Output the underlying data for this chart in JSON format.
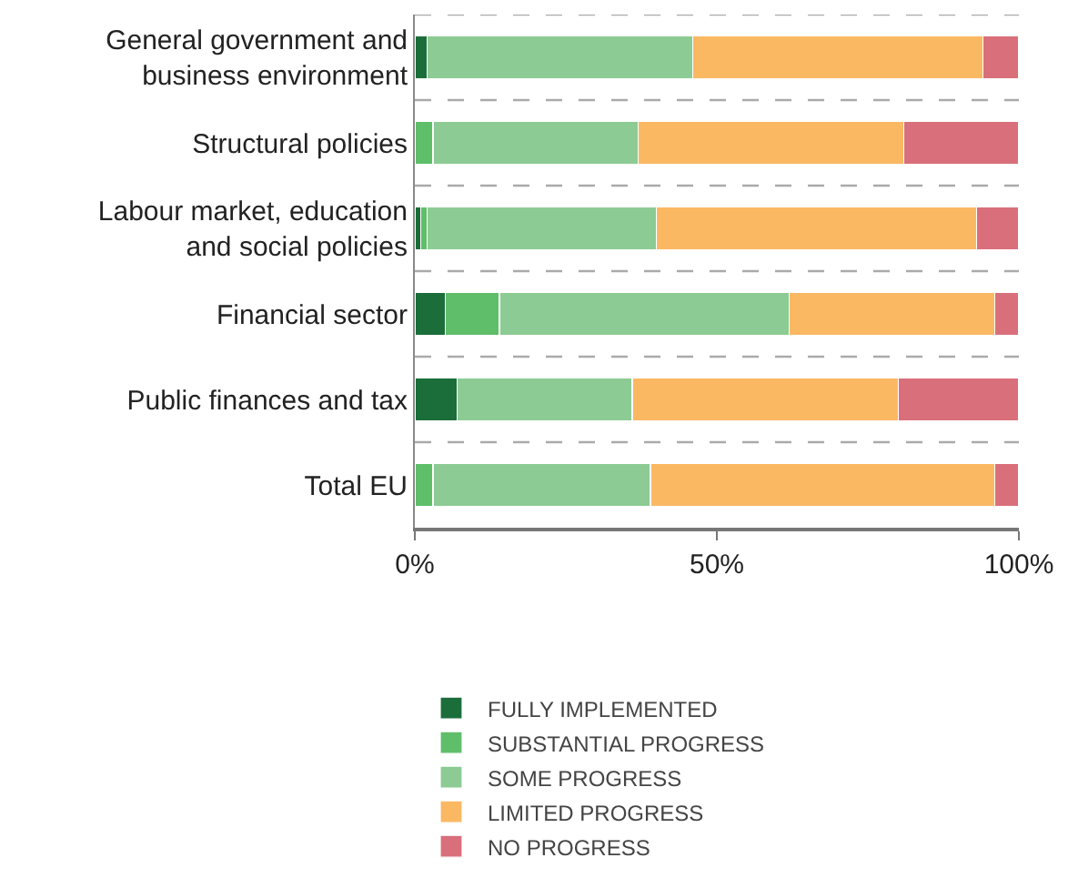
{
  "chart_data": {
    "type": "bar",
    "orientation": "horizontal",
    "stacked": true,
    "categories": [
      "General government and\nbusiness environment",
      "Structural policies",
      "Labour market, education\nand social policies",
      "Financial sector",
      "Public finances and tax",
      "Total EU"
    ],
    "series": [
      {
        "name": "FULLY IMPLEMENTED",
        "color": "#1b6e3a",
        "values": [
          2,
          0,
          1,
          5,
          7,
          0
        ]
      },
      {
        "name": "SUBSTANTIAL PROGRESS",
        "color": "#5fbe6a",
        "values": [
          0,
          3,
          1,
          9,
          0,
          3
        ]
      },
      {
        "name": "SOME PROGRESS",
        "color": "#8ccb93",
        "values": [
          44,
          34,
          38,
          48,
          29,
          36
        ]
      },
      {
        "name": "LIMITED PROGRESS",
        "color": "#fbb863",
        "values": [
          48,
          44,
          53,
          34,
          44,
          57
        ]
      },
      {
        "name": "NO PROGRESS",
        "color": "#d96f7b",
        "values": [
          6,
          19,
          7,
          4,
          20,
          4
        ]
      }
    ],
    "xlim": [
      0,
      100
    ],
    "xticks": [
      {
        "value": 0,
        "label": "0%"
      },
      {
        "value": 50,
        "label": "50%"
      },
      {
        "value": 100,
        "label": "100%"
      }
    ],
    "grid": "y",
    "legend": "bottom"
  }
}
